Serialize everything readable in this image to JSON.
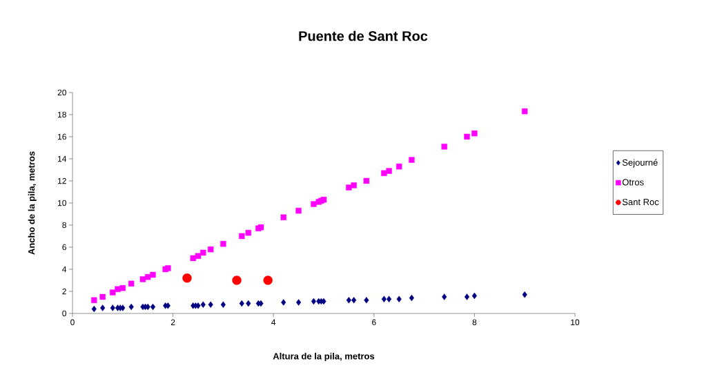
{
  "chart_data": {
    "type": "scatter",
    "title": "Puente de Sant Roc",
    "xlabel": "Altura de la pila, metros",
    "ylabel": "Ancho de la pila, metros",
    "xlim": [
      0,
      10
    ],
    "xticks": [
      0,
      2,
      4,
      6,
      8,
      10
    ],
    "ylim": [
      0,
      20
    ],
    "yticks": [
      0,
      2,
      4,
      6,
      8,
      10,
      12,
      14,
      16,
      18,
      20
    ],
    "grid": false,
    "legend": "right",
    "series": [
      {
        "name": "Sejourné",
        "color": "#000080",
        "marker": "diamond",
        "x": [
          0.43,
          0.6,
          0.8,
          0.9,
          0.95,
          1.0,
          1.17,
          1.4,
          1.45,
          1.5,
          1.6,
          1.85,
          1.9,
          2.4,
          2.45,
          2.5,
          2.6,
          2.75,
          3.0,
          3.37,
          3.5,
          3.7,
          3.75,
          4.2,
          4.5,
          4.8,
          4.9,
          4.95,
          5.0,
          5.5,
          5.6,
          5.85,
          6.2,
          6.3,
          6.5,
          6.75,
          7.4,
          7.85,
          8.0,
          9.0
        ],
        "values": [
          0.4,
          0.5,
          0.5,
          0.5,
          0.5,
          0.5,
          0.6,
          0.6,
          0.6,
          0.6,
          0.6,
          0.7,
          0.7,
          0.7,
          0.7,
          0.7,
          0.8,
          0.8,
          0.8,
          0.9,
          0.9,
          0.9,
          0.9,
          1.0,
          1.0,
          1.1,
          1.1,
          1.1,
          1.1,
          1.2,
          1.2,
          1.2,
          1.3,
          1.3,
          1.3,
          1.4,
          1.5,
          1.5,
          1.6,
          1.7
        ]
      },
      {
        "name": "Otros",
        "color": "#ff00ff",
        "marker": "square",
        "x": [
          0.43,
          0.6,
          0.8,
          0.9,
          1.0,
          1.17,
          1.4,
          1.5,
          1.6,
          1.85,
          1.9,
          2.4,
          2.5,
          2.6,
          2.75,
          3.0,
          3.37,
          3.5,
          3.7,
          3.75,
          4.2,
          4.5,
          4.8,
          4.9,
          4.95,
          5.0,
          5.5,
          5.6,
          5.85,
          6.2,
          6.3,
          6.5,
          6.75,
          7.4,
          7.85,
          8.0,
          9.0
        ],
        "values": [
          1.2,
          1.5,
          1.9,
          2.2,
          2.3,
          2.7,
          3.1,
          3.3,
          3.5,
          4.0,
          4.1,
          5.0,
          5.2,
          5.5,
          5.8,
          6.3,
          7.0,
          7.3,
          7.7,
          7.8,
          8.7,
          9.3,
          9.9,
          10.1,
          10.2,
          10.3,
          11.4,
          11.6,
          12.0,
          12.7,
          12.9,
          13.3,
          13.9,
          15.1,
          16.0,
          16.3,
          18.3
        ]
      },
      {
        "name": "Sant Roc",
        "color": "#ff0000",
        "marker": "circle",
        "x": [
          2.28,
          3.27,
          3.89
        ],
        "values": [
          3.2,
          3.0,
          3.0
        ]
      }
    ]
  }
}
